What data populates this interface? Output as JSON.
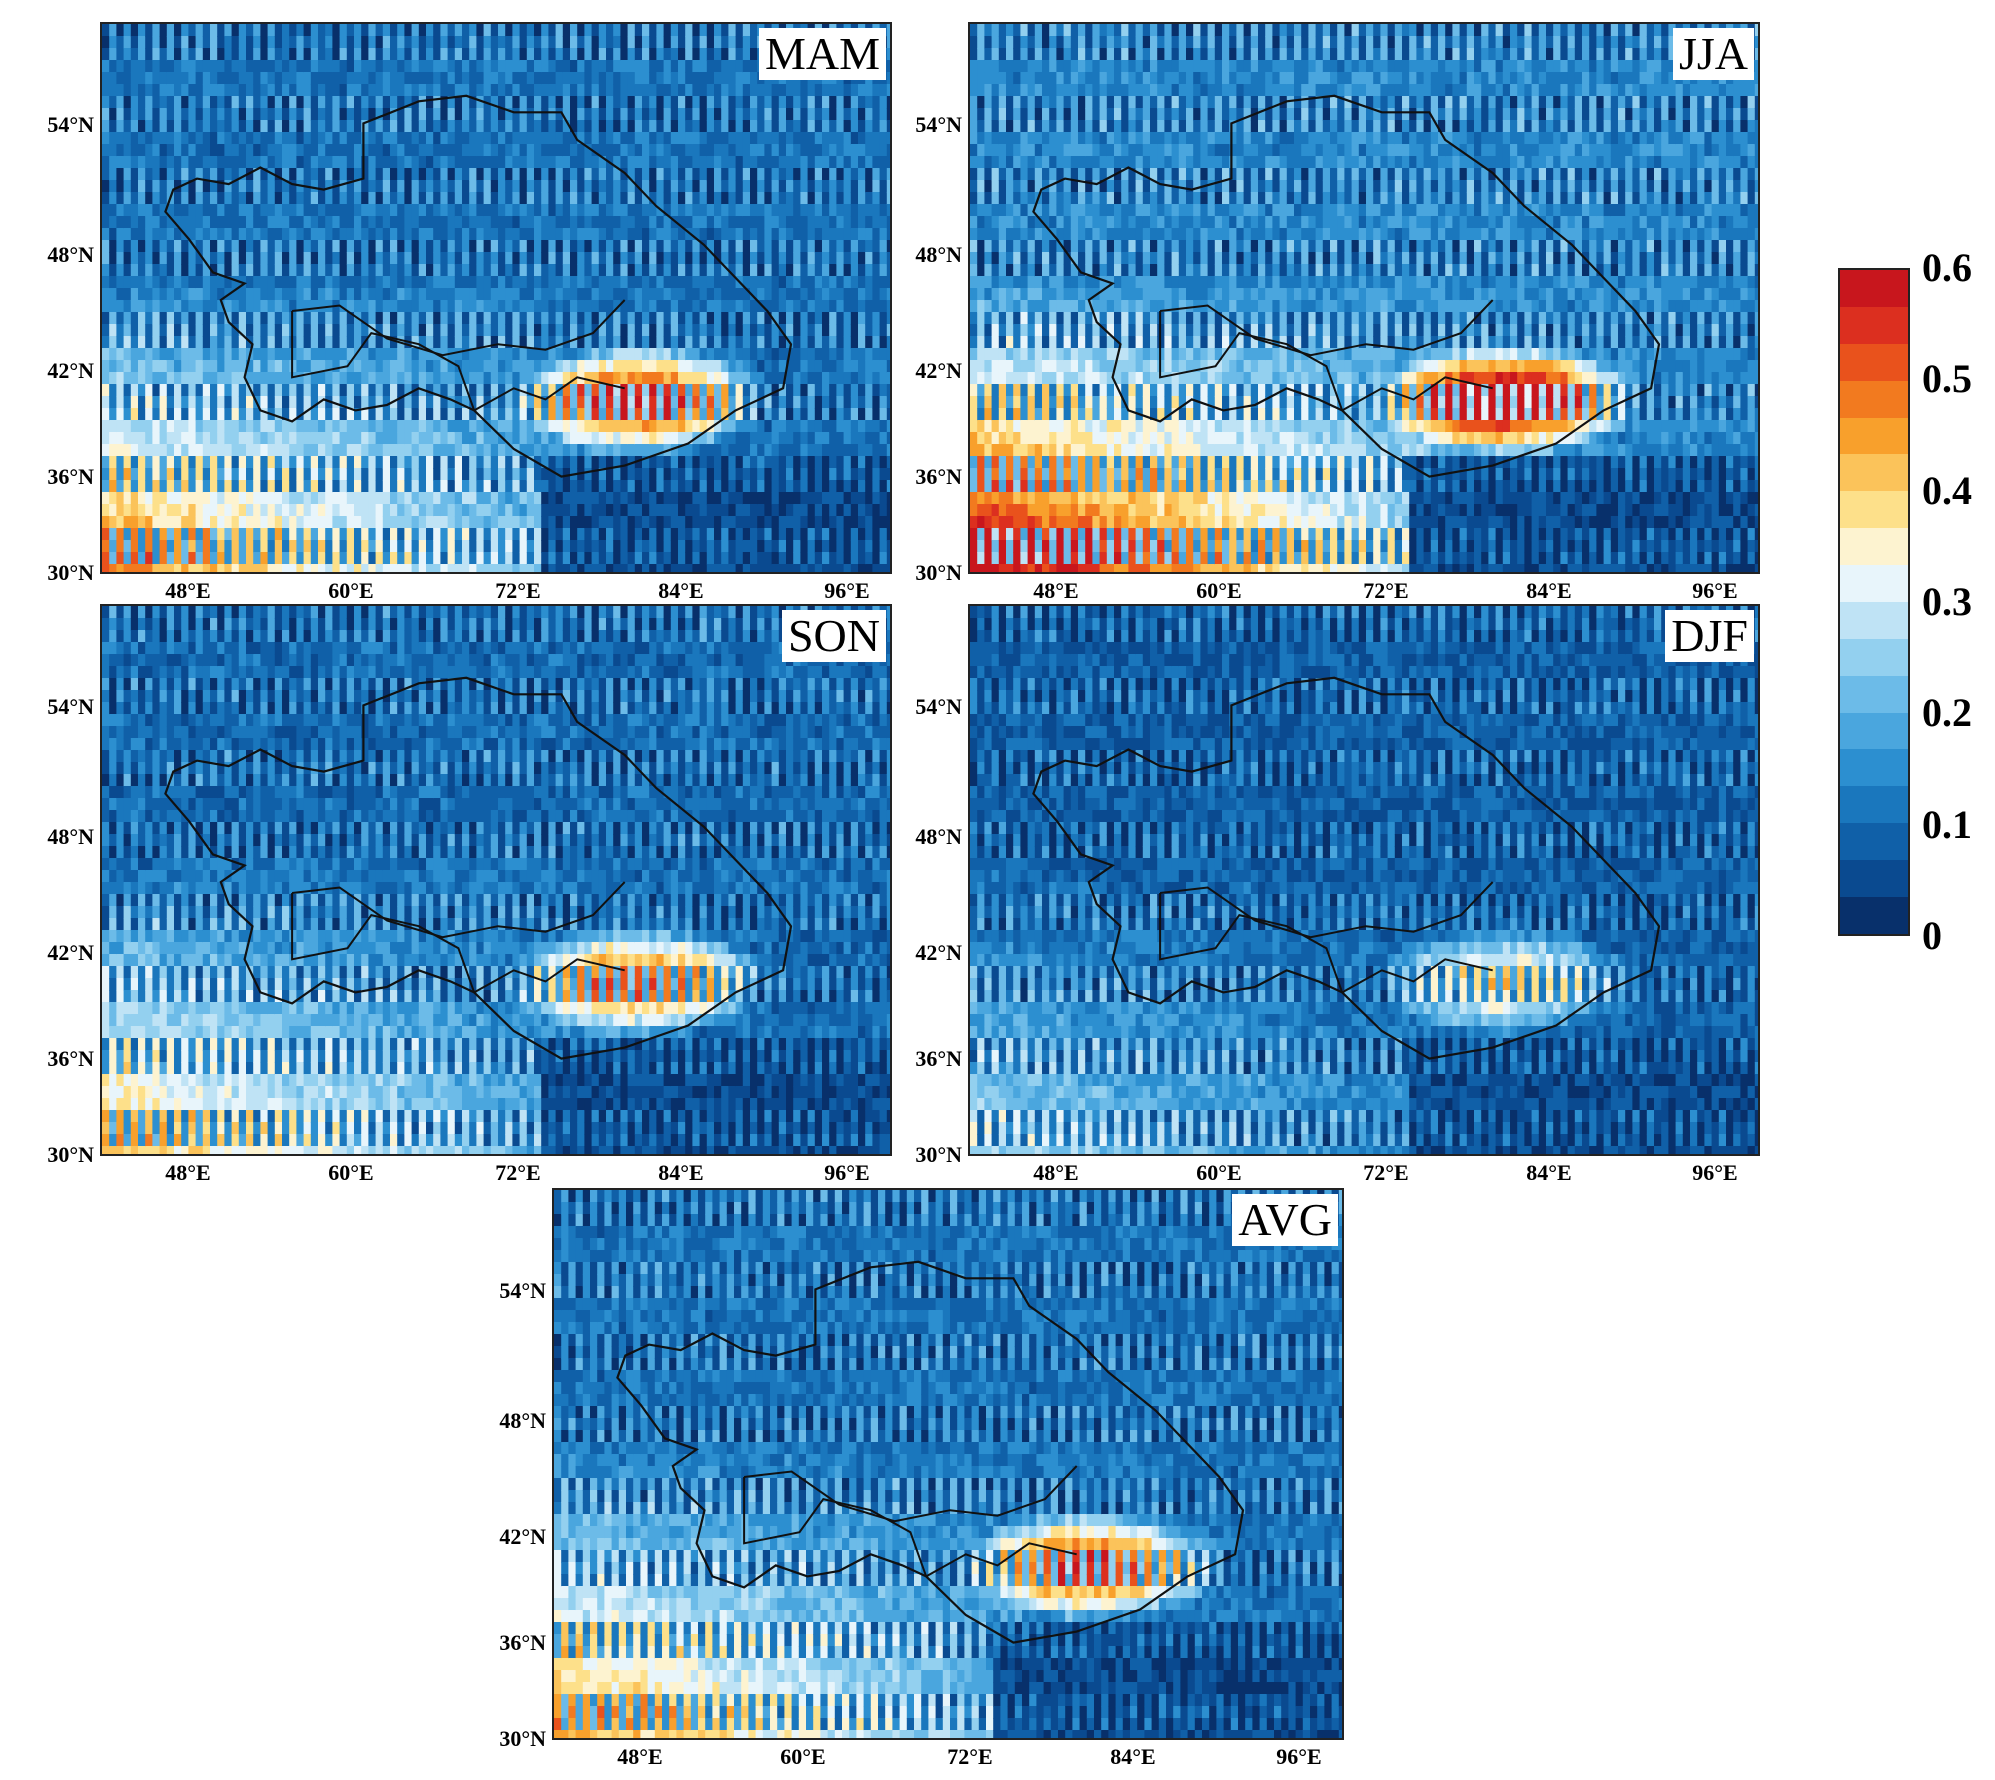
{
  "figure": {
    "panels": [
      {
        "label": "MAM"
      },
      {
        "label": "JJA"
      },
      {
        "label": "SON"
      },
      {
        "label": "DJF"
      },
      {
        "label": "AVG"
      }
    ],
    "latitude_labels": [
      "54°N",
      "48°N",
      "42°N",
      "36°N",
      "30°N"
    ],
    "longitude_labels": [
      "48°E",
      "60°E",
      "72°E",
      "84°E",
      "96°E"
    ]
  },
  "colorbar": {
    "min": 0,
    "max": 0.6,
    "ticks": [
      "0",
      "0.1",
      "0.2",
      "0.3",
      "0.4",
      "0.5",
      "0.6"
    ],
    "colors": [
      "#08306b",
      "#0a4a90",
      "#1060a8",
      "#1a77bd",
      "#2c8fd0",
      "#4aa6de",
      "#6cbbe8",
      "#93d0ef",
      "#bfe3f5",
      "#e8f5fb",
      "#fdf3d0",
      "#fde08a",
      "#fbc35a",
      "#f8a02c",
      "#f27a1f",
      "#e9521c",
      "#dc2f1f",
      "#c8161d"
    ]
  },
  "chart_data": {
    "type": "heatmap",
    "panels": [
      "MAM",
      "JJA",
      "SON",
      "DJF",
      "AVG"
    ],
    "x_ticks": [
      "48°E",
      "60°E",
      "72°E",
      "84°E",
      "96°E"
    ],
    "y_ticks": [
      "30°N",
      "36°N",
      "42°N",
      "48°N",
      "54°N"
    ],
    "color_range": [
      0,
      0.6
    ]
  }
}
